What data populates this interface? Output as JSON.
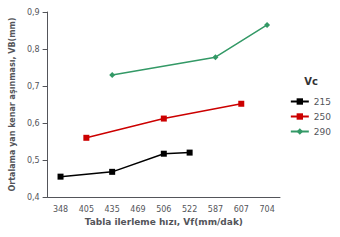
{
  "chart_data": {
    "type": "line",
    "categories": [
      "348",
      "405",
      "435",
      "469",
      "506",
      "522",
      "587",
      "607",
      "704"
    ],
    "series": [
      {
        "name": "215",
        "color": "#000000",
        "marker": "square",
        "x": [
          "348",
          "435",
          "506",
          "522"
        ],
        "values": [
          0.455,
          0.468,
          0.517,
          0.52
        ]
      },
      {
        "name": "250",
        "color": "#cc0000",
        "marker": "square",
        "x": [
          "405",
          "506",
          "607"
        ],
        "values": [
          0.56,
          0.612,
          0.652
        ]
      },
      {
        "name": "290",
        "color": "#339966",
        "marker": "diamond",
        "x": [
          "435",
          "587",
          "704"
        ],
        "values": [
          0.73,
          0.778,
          0.865
        ]
      }
    ],
    "xlabel": "Tabla ilerleme hızı, Vf(mm/dak)",
    "ylabel": "Ortalama yan kenar aşınması, VB(mm)",
    "legend_title": "Vc",
    "ylim": [
      0.4,
      0.9
    ],
    "yticks": [
      {
        "value": 0.4,
        "label": "0,4"
      },
      {
        "value": 0.5,
        "label": "0,5"
      },
      {
        "value": 0.6,
        "label": "0,6"
      },
      {
        "value": 0.7,
        "label": "0,7"
      },
      {
        "value": 0.8,
        "label": "0,8"
      },
      {
        "value": 0.9,
        "label": "0,9"
      }
    ],
    "grid": false,
    "legend": "right"
  }
}
